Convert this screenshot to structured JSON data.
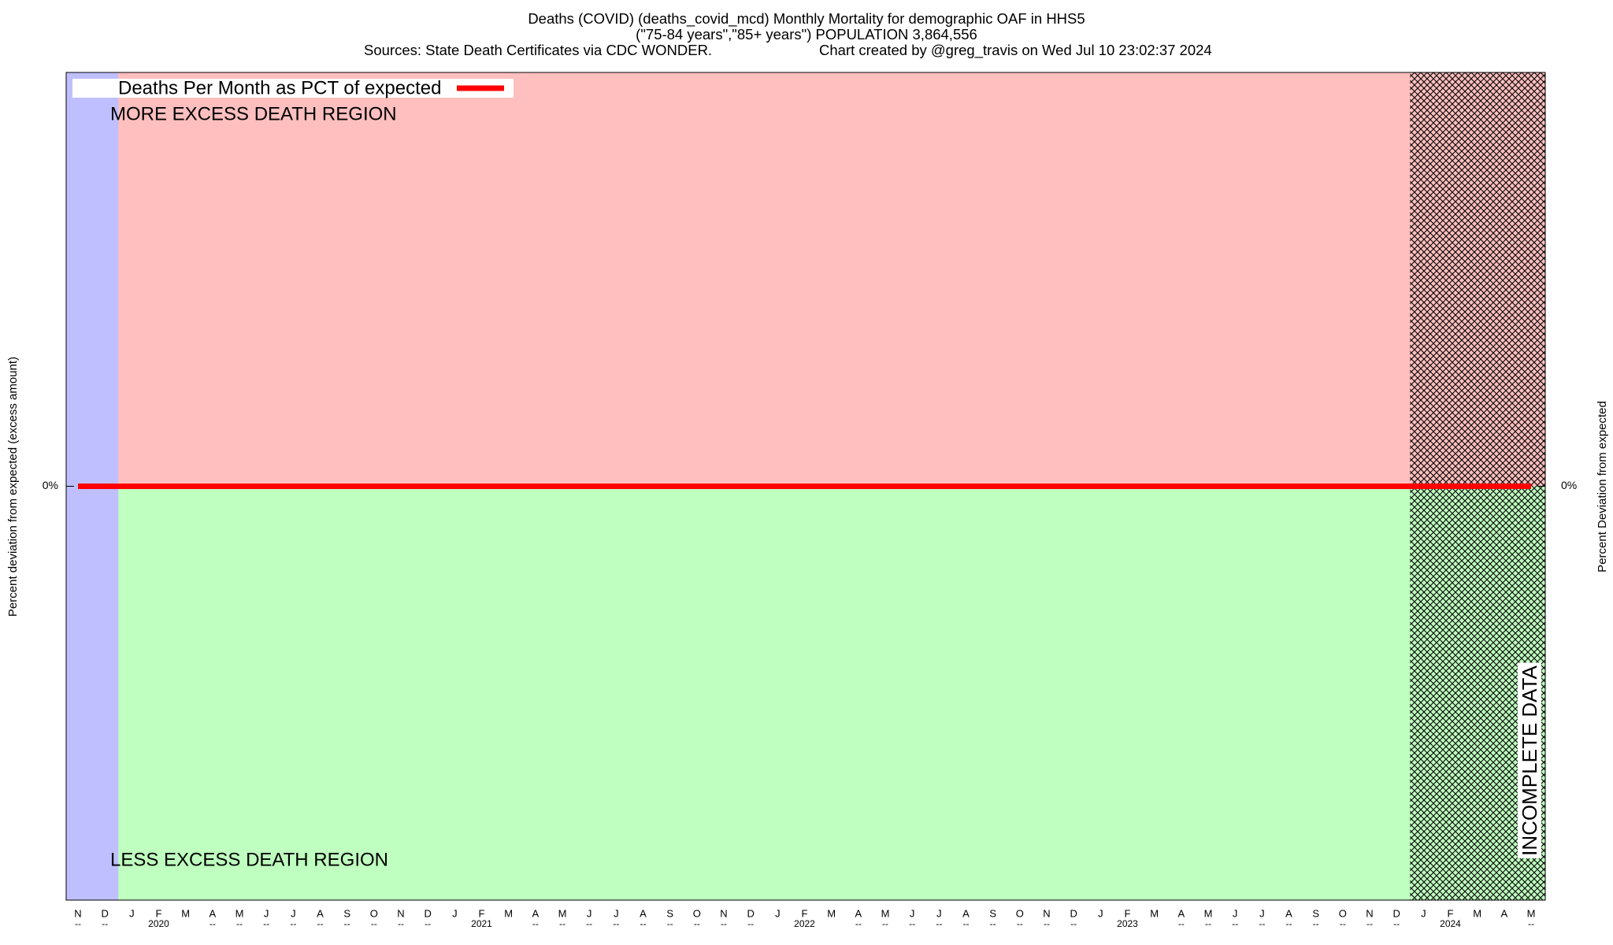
{
  "chart_data": {
    "type": "line",
    "title": "Deaths (COVID) (deaths_covid_mcd) Monthly Mortality for demographic OAF in HHS5",
    "subtitle": "(\"75-84 years\",\"85+ years\") POPULATION 3,864,556",
    "source": "Sources: State Death Certificates via CDC WONDER.",
    "credit": "Chart created by @greg_travis on Wed Jul 10 23:02:37 2024",
    "y_label": "Percent deviation from expected (excess amount)",
    "y2_label": "Percent Deviation from expected",
    "annotations": [
      "MORE EXCESS DEATH REGION",
      "LESS EXCESS DEATH REGION",
      "INCOMPLETE DATA"
    ],
    "categories": [
      "N",
      "D",
      "J",
      "F",
      "M",
      "A",
      "M",
      "J",
      "J",
      "A",
      "S",
      "O",
      "N",
      "D",
      "J",
      "F",
      "M",
      "A",
      "M",
      "J",
      "J",
      "A",
      "S",
      "O",
      "N",
      "D",
      "J",
      "F",
      "M",
      "A",
      "M",
      "J",
      "J",
      "A",
      "S",
      "O",
      "N",
      "D",
      "J",
      "F",
      "M",
      "A",
      "M",
      "J",
      "J",
      "A",
      "S",
      "O",
      "N",
      "D",
      "J",
      "F",
      "M",
      "A",
      "M"
    ],
    "sublabels": [
      "--",
      "--",
      null,
      "2020",
      null,
      "--",
      "--",
      "--",
      "--",
      "--",
      "--",
      "--",
      "--",
      "--",
      null,
      "2021",
      null,
      "--",
      "--",
      "--",
      "--",
      "--",
      "--",
      "--",
      "--",
      "--",
      null,
      "2022",
      null,
      "--",
      "--",
      "--",
      "--",
      "--",
      "--",
      "--",
      "--",
      "--",
      null,
      "2023",
      null,
      "--",
      "--",
      "--",
      "--",
      "--",
      "--",
      "--",
      "--",
      "--",
      null,
      "2024",
      null,
      null,
      "--"
    ],
    "series": [
      {
        "name": "Deaths Per Month as PCT of expected",
        "color": "#ff0000",
        "values": [
          0,
          0,
          0,
          0,
          0,
          0,
          0,
          0,
          0,
          0,
          0,
          0,
          0,
          0,
          0,
          0,
          0,
          0,
          0,
          0,
          0,
          0,
          0,
          0,
          0,
          0,
          0,
          0,
          0,
          0,
          0,
          0,
          0,
          0,
          0,
          0,
          0,
          0,
          0,
          0,
          0,
          0,
          0,
          0,
          0,
          0,
          0,
          0,
          0,
          0,
          0,
          0,
          0,
          0,
          0
        ]
      }
    ],
    "ylim": [
      -1,
      1
    ],
    "yticks": [
      {
        "value": 0,
        "label": "0%"
      }
    ],
    "y2lim": [
      -1,
      1
    ],
    "y2ticks": [
      {
        "value": 0,
        "label": "0%"
      }
    ],
    "legend": "top-left"
  }
}
